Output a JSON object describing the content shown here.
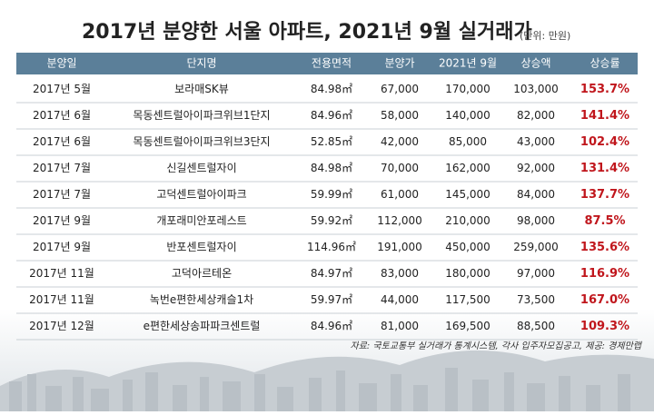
{
  "header": {
    "title": "2017년 분양한 서울 아파트, 2021년 9월 실거래가",
    "unit": "(단위: 만원)"
  },
  "table": {
    "columns": [
      "분양일",
      "단지명",
      "전용면적",
      "분양가",
      "2021년 9월",
      "상승액",
      "상승률"
    ],
    "rows": [
      [
        "2017년 5월",
        "보라매SK뷰",
        "84.98㎡",
        "67,000",
        "170,000",
        "103,000",
        "153.7%"
      ],
      [
        "2017년 6월",
        "목동센트럴아이파크위브1단지",
        "84.96㎡",
        "58,000",
        "140,000",
        "82,000",
        "141.4%"
      ],
      [
        "2017년 6월",
        "목동센트럴아이파크위브3단지",
        "52.85㎡",
        "42,000",
        "85,000",
        "43,000",
        "102.4%"
      ],
      [
        "2017년 7월",
        "신길센트럴자이",
        "84.98㎡",
        "70,000",
        "162,000",
        "92,000",
        "131.4%"
      ],
      [
        "2017년 7월",
        "고덕센트럴아이파크",
        "59.99㎡",
        "61,000",
        "145,000",
        "84,000",
        "137.7%"
      ],
      [
        "2017년 9월",
        "개포래미안포레스트",
        "59.92㎡",
        "112,000",
        "210,000",
        "98,000",
        "87.5%"
      ],
      [
        "2017년 9월",
        "반포센트럴자이",
        "114.96㎡",
        "191,000",
        "450,000",
        "259,000",
        "135.6%"
      ],
      [
        "2017년 11월",
        "고덕아르테온",
        "84.97㎡",
        "83,000",
        "180,000",
        "97,000",
        "116.9%"
      ],
      [
        "2017년 11월",
        "녹번e편한세상캐슬1차",
        "59.97㎡",
        "44,000",
        "117,500",
        "73,500",
        "167.0%"
      ],
      [
        "2017년 12월",
        "e편한세상송파파크센트럴",
        "84.96㎡",
        "81,000",
        "169,500",
        "88,500",
        "109.3%"
      ]
    ]
  },
  "source": "자료: 국토교통부 실거래가 통계시스템, 각사 입주자모집공고, 제공: 경제만랩"
}
